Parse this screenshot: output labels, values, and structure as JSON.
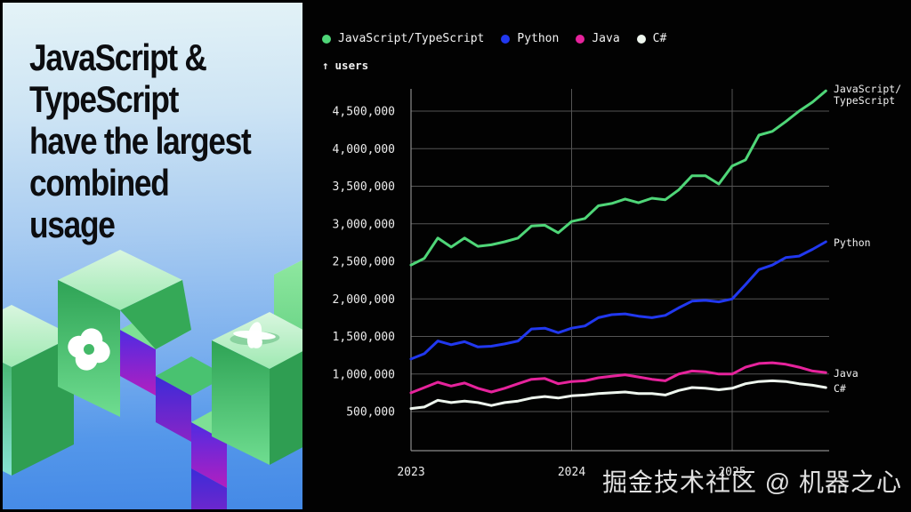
{
  "left_panel": {
    "headline_lines": [
      "JavaScript &",
      "TypeScript",
      "have the largest",
      "combined",
      "usage"
    ],
    "background_top": "#e4f3f7",
    "background_bottom": "#4489e6",
    "ribbon_green_light": "#9fe9b2",
    "ribbon_green_mid": "#49c270",
    "ribbon_green_dark": "#2f9e52",
    "ribbon_purple_top": "#4f2be2",
    "ribbon_purple_bottom": "#b21fc0"
  },
  "right_panel": {
    "background": "#020202",
    "legend": [
      {
        "label": "JavaScript/TypeScript",
        "color": "#4fd678"
      },
      {
        "label": "Python",
        "color": "#2138ef"
      },
      {
        "label": "Java",
        "color": "#e6239c"
      },
      {
        "label": "C#",
        "color": "#eef6ee"
      }
    ],
    "axis_arrow": "↑",
    "axis_label": "users",
    "watermark": "掘金技术社区 @ 机器之心"
  },
  "chart_data": {
    "type": "line",
    "title": "",
    "ylabel": "users",
    "x_unit": "month",
    "x_start": "2023-01",
    "x_end": "2025-08",
    "grid": true,
    "legend_position": "top",
    "ylim": [
      0,
      4850000
    ],
    "x_tick_labels": [
      "2023",
      "2024",
      "2025"
    ],
    "y_ticks": [
      {
        "value": 4500000,
        "label": "4,500,000"
      },
      {
        "value": 4000000,
        "label": "4,000,000"
      },
      {
        "value": 3500000,
        "label": "3,500,000"
      },
      {
        "value": 3000000,
        "label": "3,000,000"
      },
      {
        "value": 2500000,
        "label": "2,500,000"
      },
      {
        "value": 2000000,
        "label": "2,000,000"
      },
      {
        "value": 1500000,
        "label": "1,500,000"
      },
      {
        "value": 1000000,
        "label": "1,000,000"
      },
      {
        "value": 500000,
        "label": "500,000"
      }
    ],
    "series": [
      {
        "name": "JavaScript/TypeScript",
        "color": "#4fd678",
        "end_label": [
          "JavaScript/",
          "TypeScript"
        ],
        "values": [
          2450000,
          2540000,
          2810000,
          2690000,
          2810000,
          2700000,
          2720000,
          2760000,
          2810000,
          2970000,
          2980000,
          2880000,
          3030000,
          3070000,
          3240000,
          3270000,
          3330000,
          3280000,
          3340000,
          3320000,
          3450000,
          3640000,
          3640000,
          3530000,
          3770000,
          3850000,
          4180000,
          4230000,
          4360000,
          4500000,
          4620000,
          4770000
        ]
      },
      {
        "name": "Python",
        "color": "#2138ef",
        "end_label": [
          "Python"
        ],
        "values": [
          1200000,
          1270000,
          1440000,
          1390000,
          1430000,
          1360000,
          1370000,
          1400000,
          1440000,
          1600000,
          1610000,
          1550000,
          1610000,
          1640000,
          1750000,
          1790000,
          1800000,
          1770000,
          1750000,
          1780000,
          1880000,
          1970000,
          1980000,
          1960000,
          2000000,
          2190000,
          2390000,
          2450000,
          2550000,
          2570000,
          2660000,
          2760000
        ]
      },
      {
        "name": "Java",
        "color": "#e6239c",
        "end_label": [
          "Java"
        ],
        "values": [
          750000,
          820000,
          890000,
          840000,
          880000,
          810000,
          760000,
          810000,
          870000,
          930000,
          940000,
          870000,
          900000,
          910000,
          950000,
          970000,
          990000,
          960000,
          930000,
          910000,
          1000000,
          1040000,
          1030000,
          1000000,
          1000000,
          1090000,
          1140000,
          1150000,
          1130000,
          1090000,
          1040000,
          1020000
        ]
      },
      {
        "name": "C#",
        "color": "#eef6ee",
        "end_label": [
          "C#"
        ],
        "values": [
          540000,
          560000,
          650000,
          620000,
          640000,
          620000,
          580000,
          620000,
          640000,
          680000,
          700000,
          680000,
          710000,
          720000,
          740000,
          750000,
          760000,
          740000,
          740000,
          720000,
          780000,
          820000,
          810000,
          790000,
          810000,
          870000,
          900000,
          910000,
          900000,
          870000,
          850000,
          820000
        ]
      }
    ]
  }
}
